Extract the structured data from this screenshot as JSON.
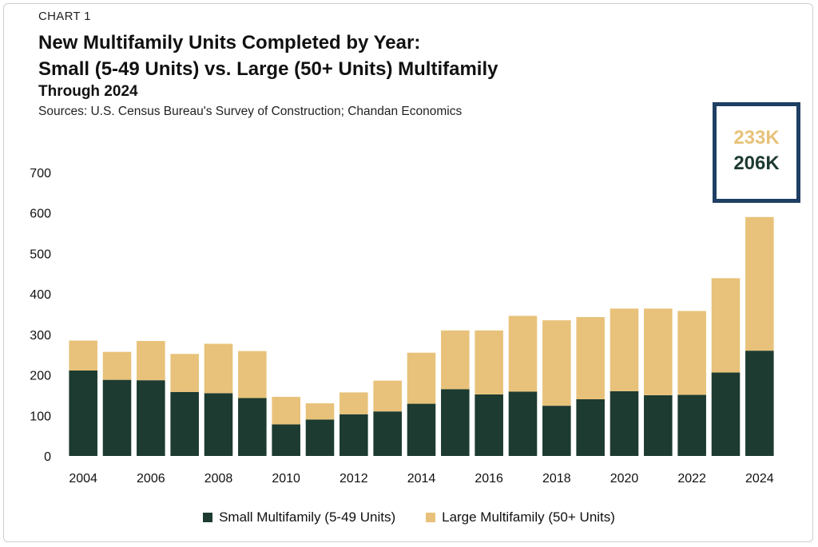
{
  "header": {
    "label": "CHART 1",
    "title_line1": "New Multifamily Units Completed by Year:",
    "title_line2": "Small (5-49 Units) vs. Large (50+ Units) Multifamily",
    "subtitle": "Through 2024",
    "source": "Sources: U.S. Census Bureau's Survey of Construction; Chandan Economics"
  },
  "callout": {
    "large_value": "233K",
    "small_value": "206K"
  },
  "colors": {
    "small": "#1d3b30",
    "large": "#e8c27a",
    "callout_border": "#1f3f63"
  },
  "chart_data": {
    "type": "bar",
    "stacked": true,
    "categories": [
      "2004",
      "2005",
      "2006",
      "2007",
      "2008",
      "2009",
      "2010",
      "2011",
      "2012",
      "2013",
      "2014",
      "2015",
      "2016",
      "2017",
      "2018",
      "2019",
      "2020",
      "2021",
      "2022",
      "2023",
      "2024"
    ],
    "x_tick_labels": [
      "2004",
      "2006",
      "2008",
      "2010",
      "2012",
      "2014",
      "2016",
      "2018",
      "2020",
      "2022",
      "2024"
    ],
    "series": [
      {
        "name": "Small Multifamily (5-49 Units)",
        "values": [
          211,
          188,
          187,
          158,
          155,
          143,
          78,
          90,
          103,
          110,
          129,
          165,
          152,
          159,
          124,
          140,
          160,
          150,
          151,
          206,
          260
        ]
      },
      {
        "name": "Large Multifamily (50+ Units)",
        "values": [
          74,
          69,
          97,
          94,
          122,
          116,
          68,
          40,
          54,
          76,
          126,
          145,
          158,
          187,
          211,
          203,
          204,
          214,
          207,
          233,
          330
        ]
      }
    ],
    "ylim": [
      0,
      700
    ],
    "yticks": [
      0,
      100,
      200,
      300,
      400,
      500,
      600,
      700
    ],
    "grid": false,
    "legend": "bottom"
  }
}
